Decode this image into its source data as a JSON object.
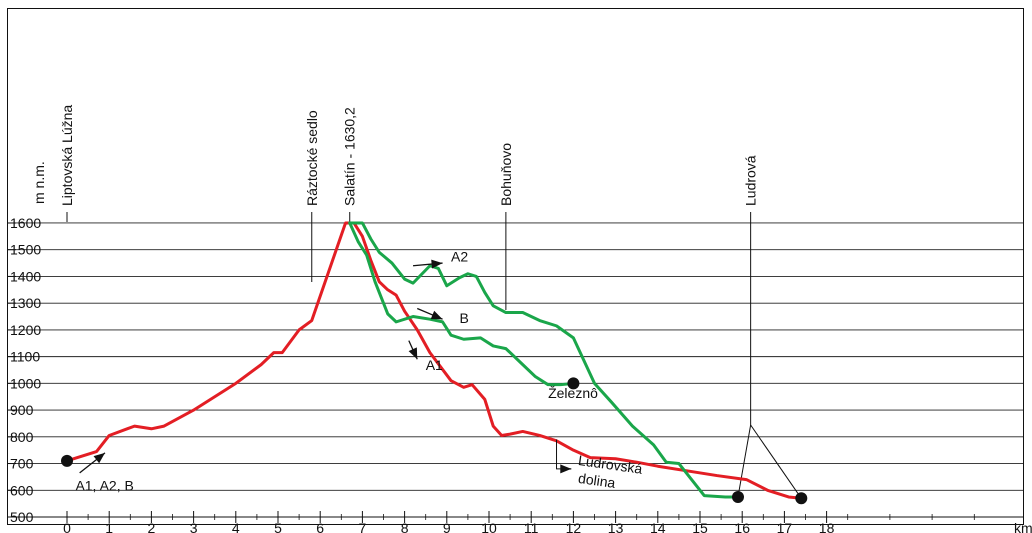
{
  "chart_data": {
    "type": "line",
    "xlabel": "km",
    "ylabel": "m n.m.",
    "xlim": [
      0,
      18
    ],
    "ylim": [
      500,
      1600
    ],
    "x_ticks": [
      "0",
      "1",
      "2",
      "3",
      "4",
      "5",
      "6",
      "7",
      "8",
      "9",
      "10",
      "11",
      "12",
      "13",
      "14",
      "15",
      "16",
      "17",
      "18"
    ],
    "y_ticks": [
      "500",
      "600",
      "700",
      "800",
      "900",
      "1000",
      "1100",
      "1200",
      "1300",
      "1400",
      "1500",
      "1600"
    ],
    "grid": "horizontal",
    "colors": {
      "red": "#e31e24",
      "green": "#1aa64a",
      "axis": "#111111"
    },
    "places": [
      {
        "name": "Liptovská Lúžna",
        "km": 0.0
      },
      {
        "name": "Ráztocké sedlo",
        "km": 5.8
      },
      {
        "name": "Salatín - 1630,2",
        "km": 6.7
      },
      {
        "name": "Bohuňovo",
        "km": 10.4
      },
      {
        "name": "Ludrová",
        "km": 16.2
      }
    ],
    "series": [
      {
        "color": "red",
        "points": [
          [
            0,
            710
          ],
          [
            0.7,
            745
          ],
          [
            1,
            805
          ],
          [
            1.6,
            840
          ],
          [
            2,
            830
          ],
          [
            2.3,
            840
          ],
          [
            3,
            900
          ],
          [
            4,
            1000
          ],
          [
            4.6,
            1070
          ],
          [
            4.9,
            1115
          ],
          [
            5.1,
            1115
          ],
          [
            5.5,
            1200
          ],
          [
            5.8,
            1235
          ],
          [
            6.6,
            1600
          ],
          [
            6.8,
            1600
          ],
          [
            7.0,
            1550
          ],
          [
            7.2,
            1460
          ],
          [
            7.4,
            1380
          ],
          [
            7.6,
            1350
          ],
          [
            7.8,
            1330
          ],
          [
            8.0,
            1270
          ],
          [
            8.3,
            1200
          ],
          [
            8.6,
            1115
          ],
          [
            9.1,
            1010
          ],
          [
            9.4,
            985
          ],
          [
            9.6,
            995
          ],
          [
            9.9,
            940
          ],
          [
            10.1,
            840
          ],
          [
            10.3,
            805
          ],
          [
            10.5,
            810
          ],
          [
            10.8,
            820
          ],
          [
            11.2,
            805
          ],
          [
            11.6,
            785
          ],
          [
            12.0,
            750
          ],
          [
            12.4,
            722
          ],
          [
            13.0,
            718
          ],
          [
            13.5,
            705
          ],
          [
            14.0,
            690
          ],
          [
            14.8,
            670
          ],
          [
            15.4,
            655
          ],
          [
            16.1,
            640
          ],
          [
            16.6,
            600
          ],
          [
            17.1,
            575
          ],
          [
            17.4,
            570
          ]
        ]
      },
      {
        "color": "green",
        "points": [
          [
            6.7,
            1600
          ],
          [
            7.0,
            1600
          ],
          [
            7.2,
            1540
          ],
          [
            7.4,
            1490
          ],
          [
            7.7,
            1450
          ],
          [
            8.0,
            1390
          ],
          [
            8.2,
            1375
          ],
          [
            8.6,
            1440
          ],
          [
            8.8,
            1430
          ],
          [
            9.0,
            1365
          ],
          [
            9.3,
            1395
          ],
          [
            9.5,
            1410
          ],
          [
            9.7,
            1400
          ],
          [
            9.9,
            1340
          ],
          [
            10.1,
            1290
          ],
          [
            10.4,
            1265
          ],
          [
            10.8,
            1265
          ],
          [
            11.2,
            1235
          ],
          [
            11.6,
            1215
          ],
          [
            12.0,
            1170
          ],
          [
            12.5,
            1000
          ],
          [
            12.9,
            930
          ],
          [
            13.4,
            840
          ],
          [
            13.9,
            770
          ],
          [
            14.2,
            705
          ],
          [
            14.5,
            700
          ],
          [
            14.8,
            640
          ],
          [
            15.1,
            580
          ],
          [
            15.6,
            575
          ],
          [
            15.9,
            575
          ]
        ]
      },
      {
        "color": "green",
        "points": [
          [
            6.7,
            1600
          ],
          [
            6.9,
            1530
          ],
          [
            7.1,
            1480
          ],
          [
            7.3,
            1380
          ],
          [
            7.6,
            1260
          ],
          [
            7.8,
            1230
          ],
          [
            8.2,
            1250
          ],
          [
            8.6,
            1240
          ],
          [
            8.9,
            1230
          ],
          [
            9.1,
            1180
          ],
          [
            9.4,
            1165
          ],
          [
            9.8,
            1170
          ],
          [
            10.1,
            1140
          ],
          [
            10.4,
            1130
          ],
          [
            10.8,
            1070
          ],
          [
            11.1,
            1025
          ],
          [
            11.4,
            995
          ],
          [
            11.7,
            995
          ],
          [
            12.0,
            1000
          ]
        ]
      }
    ],
    "endpoints": [
      {
        "label": "Železnô",
        "km": 12.0,
        "alt": 1000
      },
      {
        "label": "",
        "km": 0.0,
        "alt": 710
      },
      {
        "label": "",
        "km": 15.9,
        "alt": 575
      },
      {
        "label": "",
        "km": 17.4,
        "alt": 570
      }
    ],
    "annotations": [
      {
        "text": "A1, A2, B",
        "km": 0.2,
        "alt": 600
      },
      {
        "text": "A2",
        "km": 9.1,
        "alt": 1455
      },
      {
        "text": "B",
        "km": 9.3,
        "alt": 1225
      },
      {
        "text": "A1",
        "km": 8.5,
        "alt": 1050
      },
      {
        "text": "Železnô",
        "km": 11.4,
        "alt": 945
      },
      {
        "text": "Ludrovská",
        "km": 12.1,
        "alt": 695
      },
      {
        "text": "dolina",
        "km": 12.1,
        "alt": 628
      }
    ]
  }
}
